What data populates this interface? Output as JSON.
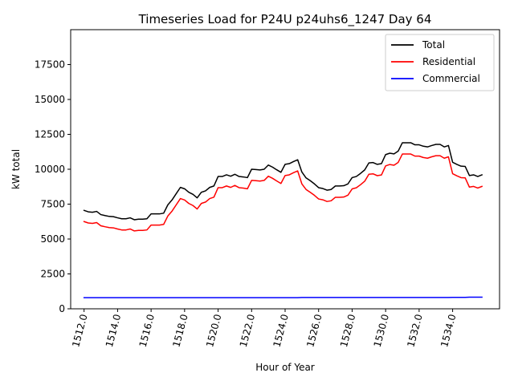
{
  "chart_data": {
    "type": "line",
    "title": "Timeseries Load for P24U p24uhs6_1247  Day 64",
    "xlabel": "Hour of Year",
    "ylabel": "kW total",
    "xlim": [
      1511.2,
      1536.8
    ],
    "ylim": [
      0,
      20000
    ],
    "xticks": [
      1512,
      1514,
      1516,
      1518,
      1520,
      1522,
      1524,
      1526,
      1528,
      1530,
      1532,
      1534
    ],
    "xtick_labels": [
      "1512.0",
      "1514.0",
      "1516.0",
      "1518.0",
      "1520.0",
      "1522.0",
      "1524.0",
      "1526.0",
      "1528.0",
      "1530.0",
      "1532.0",
      "1534.0"
    ],
    "yticks": [
      0,
      2500,
      5000,
      7500,
      10000,
      12500,
      15000,
      17500
    ],
    "ytick_labels": [
      "0",
      "2500",
      "5000",
      "7500",
      "10000",
      "12500",
      "15000",
      "17500"
    ],
    "grid": false,
    "legend_position": "top-right",
    "x": [
      1512.0,
      1512.25,
      1512.5,
      1512.75,
      1513.0,
      1513.25,
      1513.5,
      1513.75,
      1514.0,
      1514.25,
      1514.5,
      1514.75,
      1515.0,
      1515.25,
      1515.5,
      1515.75,
      1516.0,
      1516.25,
      1516.5,
      1516.75,
      1517.0,
      1517.25,
      1517.5,
      1517.75,
      1518.0,
      1518.25,
      1518.5,
      1518.75,
      1519.0,
      1519.25,
      1519.5,
      1519.75,
      1520.0,
      1520.25,
      1520.5,
      1520.75,
      1521.0,
      1521.25,
      1521.5,
      1521.75,
      1522.0,
      1522.25,
      1522.5,
      1522.75,
      1523.0,
      1523.25,
      1523.5,
      1523.75,
      1524.0,
      1524.25,
      1524.5,
      1524.75,
      1525.0,
      1525.25,
      1525.5,
      1525.75,
      1526.0,
      1526.25,
      1526.5,
      1526.75,
      1527.0,
      1527.25,
      1527.5,
      1527.75,
      1528.0,
      1528.25,
      1528.5,
      1528.75,
      1529.0,
      1529.25,
      1529.5,
      1529.75,
      1530.0,
      1530.25,
      1530.5,
      1530.75,
      1531.0,
      1531.25,
      1531.5,
      1531.75,
      1532.0,
      1532.25,
      1532.5,
      1532.75,
      1533.0,
      1533.25,
      1533.5,
      1533.75,
      1534.0,
      1534.25,
      1534.5,
      1534.75,
      1535.0,
      1535.25,
      1535.5,
      1535.75
    ],
    "series": [
      {
        "name": "Total",
        "color": "#000000",
        "values": [
          7050,
          6950,
          6920,
          6980,
          6750,
          6680,
          6620,
          6600,
          6520,
          6450,
          6450,
          6520,
          6380,
          6420,
          6420,
          6450,
          6800,
          6800,
          6800,
          6850,
          7450,
          7800,
          8250,
          8700,
          8600,
          8350,
          8200,
          7950,
          8350,
          8450,
          8700,
          8800,
          9480,
          9480,
          9600,
          9500,
          9640,
          9480,
          9450,
          9400,
          10000,
          9980,
          9950,
          10000,
          10300,
          10150,
          9960,
          9780,
          10350,
          10400,
          10550,
          10680,
          9800,
          9380,
          9180,
          8950,
          8680,
          8620,
          8500,
          8550,
          8800,
          8800,
          8820,
          8950,
          9400,
          9480,
          9700,
          9950,
          10450,
          10480,
          10350,
          10400,
          11050,
          11150,
          11100,
          11300,
          11900,
          11900,
          11900,
          11750,
          11750,
          11650,
          11600,
          11700,
          11780,
          11780,
          11600,
          11700,
          10500,
          10350,
          10220,
          10200,
          9550,
          9600,
          9480,
          9600
        ]
      },
      {
        "name": "Residential",
        "color": "#ff0000",
        "values": [
          6250,
          6150,
          6120,
          6180,
          5950,
          5880,
          5820,
          5800,
          5720,
          5650,
          5650,
          5720,
          5580,
          5620,
          5620,
          5650,
          6000,
          6000,
          6000,
          6050,
          6650,
          7000,
          7450,
          7900,
          7800,
          7550,
          7400,
          7150,
          7550,
          7650,
          7900,
          8000,
          8680,
          8680,
          8800,
          8700,
          8840,
          8680,
          8650,
          8600,
          9200,
          9180,
          9150,
          9200,
          9500,
          9350,
          9160,
          8980,
          9550,
          9600,
          9750,
          9880,
          8950,
          8550,
          8350,
          8130,
          7870,
          7810,
          7690,
          7740,
          7990,
          7990,
          8010,
          8140,
          8590,
          8670,
          8890,
          9140,
          9640,
          9670,
          9540,
          9590,
          10240,
          10340,
          10290,
          10490,
          11090,
          11090,
          11090,
          10940,
          10940,
          10840,
          10790,
          10890,
          10970,
          10970,
          10790,
          10890,
          9680,
          9530,
          9400,
          9380,
          8720,
          8770,
          8650,
          8770
        ]
      },
      {
        "name": "Commercial",
        "color": "#0000ff",
        "values": [
          800,
          800,
          800,
          800,
          800,
          800,
          800,
          800,
          800,
          800,
          800,
          800,
          800,
          800,
          800,
          800,
          800,
          800,
          800,
          800,
          800,
          800,
          800,
          800,
          800,
          800,
          800,
          800,
          800,
          800,
          800,
          800,
          800,
          800,
          800,
          800,
          800,
          800,
          800,
          800,
          800,
          800,
          800,
          800,
          800,
          800,
          800,
          800,
          800,
          800,
          800,
          800,
          810,
          810,
          810,
          810,
          810,
          810,
          810,
          810,
          810,
          810,
          810,
          810,
          810,
          810,
          810,
          810,
          810,
          810,
          810,
          810,
          810,
          810,
          810,
          810,
          810,
          810,
          810,
          810,
          810,
          810,
          810,
          810,
          810,
          810,
          810,
          810,
          820,
          820,
          820,
          820,
          830,
          830,
          830,
          830
        ]
      }
    ]
  }
}
